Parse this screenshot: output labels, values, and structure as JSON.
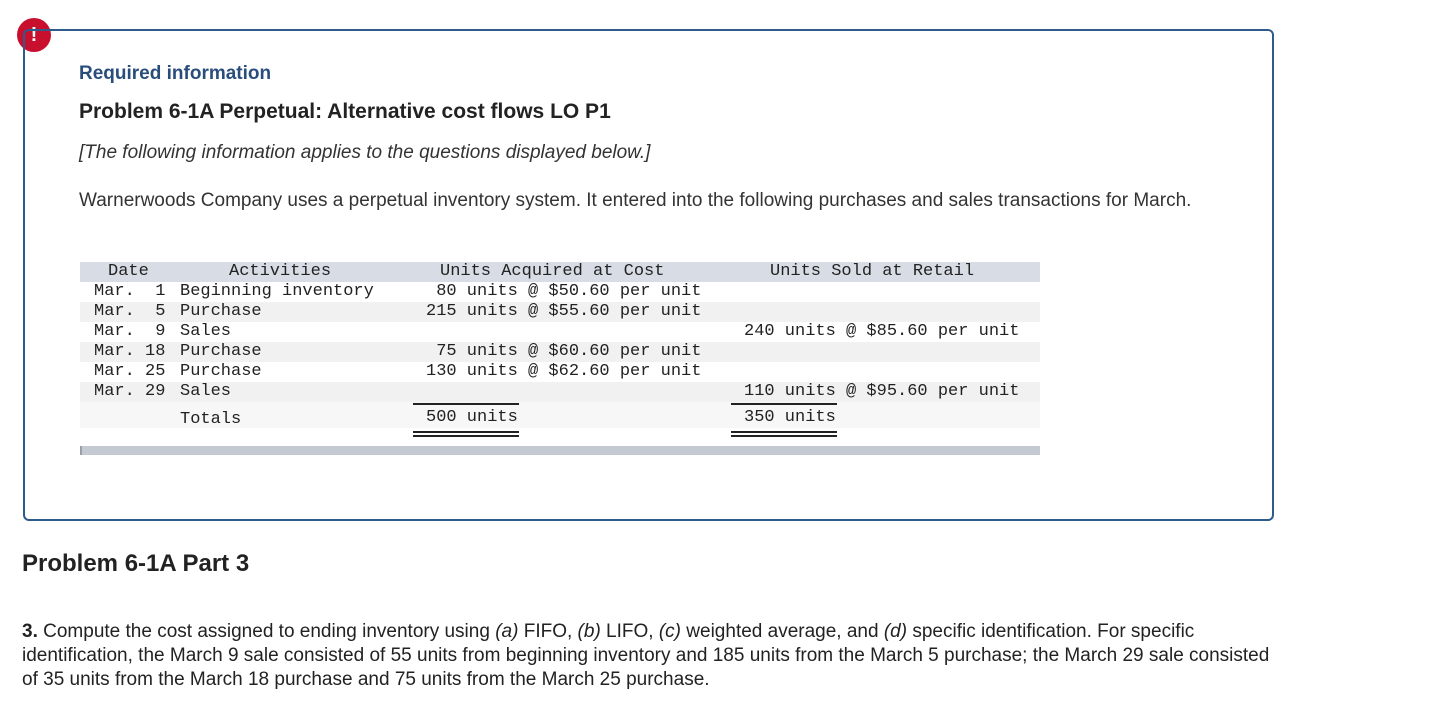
{
  "alert_icon": "exclamation-icon",
  "colors": {
    "accent": "#2a4e7c",
    "alert": "#c8102e",
    "border": "#2e5b8a"
  },
  "info": {
    "required_title": "Required information",
    "problem_title": "Problem 6-1A Perpetual: Alternative cost flows LO P1",
    "note": "[The following information applies to the questions displayed below.]",
    "intro": "Warnerwoods Company uses a perpetual inventory system. It entered into the following purchases and sales transactions for March."
  },
  "table": {
    "headers": {
      "date": "Date",
      "activities": "Activities",
      "acquired": "Units Acquired at Cost",
      "sold": "Units Sold at Retail"
    },
    "rows": [
      {
        "date": "Mar.  1",
        "activity": "Beginning inventory",
        "acquired": " 80 units @ $50.60 per unit",
        "sold": ""
      },
      {
        "date": "Mar.  5",
        "activity": "Purchase",
        "acquired": "215 units @ $55.60 per unit",
        "sold": ""
      },
      {
        "date": "Mar.  9",
        "activity": "Sales",
        "acquired": "",
        "sold": "240 units @ $85.60 per unit"
      },
      {
        "date": "Mar. 18",
        "activity": "Purchase",
        "acquired": " 75 units @ $60.60 per unit",
        "sold": ""
      },
      {
        "date": "Mar. 25",
        "activity": "Purchase",
        "acquired": "130 units @ $62.60 per unit",
        "sold": ""
      },
      {
        "date": "Mar. 29",
        "activity": "Sales",
        "acquired": "",
        "sold": "110 units @ $95.60 per unit"
      }
    ],
    "totals": {
      "label": "Totals",
      "acquired": "500 units",
      "sold": "350 units"
    }
  },
  "part": {
    "heading": "Problem 6-1A Part 3",
    "question_number": "3.",
    "question_a": " Compute the cost assigned to ending inventory using ",
    "label_a": "(a)",
    "text_a": " FIFO, ",
    "label_b": "(b)",
    "text_b": " LIFO, ",
    "label_c": "(c)",
    "text_c": " weighted average, and ",
    "label_d": "(d)",
    "text_d": " specific identification. For specific identification, the March 9 sale consisted of 55 units from beginning inventory and 185 units from the March 5 purchase; the March 29 sale consisted of 35 units from the March 18 purchase and 75 units from the March 25 purchase."
  }
}
